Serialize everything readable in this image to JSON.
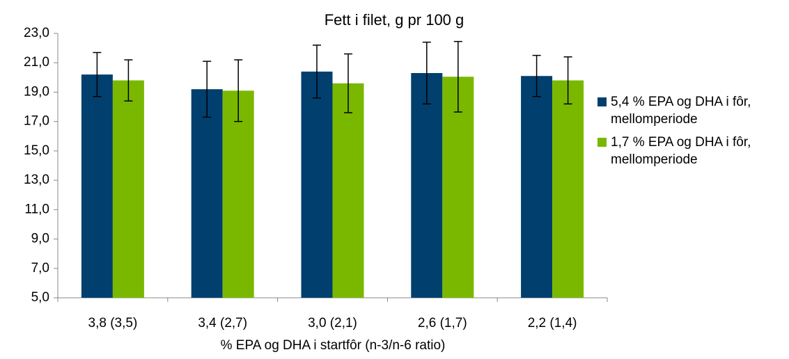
{
  "chart_data": {
    "type": "bar",
    "title": "Fett i filet, g pr 100 g",
    "x_label": "% EPA og DHA i startfôr (n-3/n-6 ratio)",
    "categories": [
      "3,8 (3,5)",
      "3,4 (2,7)",
      "3,0 (2,1)",
      "2,6 (1,7)",
      "2,2 (1,4)"
    ],
    "series": [
      {
        "name": "5,4 % EPA og DHA i fôr, mellomperiode",
        "color": "#003f6e",
        "values": [
          20.2,
          19.2,
          20.4,
          20.3,
          20.1
        ],
        "errors": [
          1.5,
          1.9,
          1.8,
          2.1,
          1.4
        ]
      },
      {
        "name": "1,7 % EPA og DHA i fôr, mellomperiode",
        "color": "#7ab800",
        "values": [
          19.8,
          19.1,
          19.6,
          20.05,
          19.8
        ],
        "errors": [
          1.4,
          2.1,
          2.0,
          2.4,
          1.6
        ]
      }
    ],
    "ylim": [
      5,
      23
    ],
    "yticks": [
      {
        "value": 5,
        "label": "5,0"
      },
      {
        "value": 7,
        "label": "7,0"
      },
      {
        "value": 9,
        "label": "9,0"
      },
      {
        "value": 11,
        "label": "11,0"
      },
      {
        "value": 13,
        "label": "13,0"
      },
      {
        "value": 15,
        "label": "15,0"
      },
      {
        "value": 17,
        "label": "17,0"
      },
      {
        "value": 19,
        "label": "19,0"
      },
      {
        "value": 21,
        "label": "21,0"
      },
      {
        "value": 23,
        "label": "23,0"
      }
    ],
    "legend": "right"
  }
}
